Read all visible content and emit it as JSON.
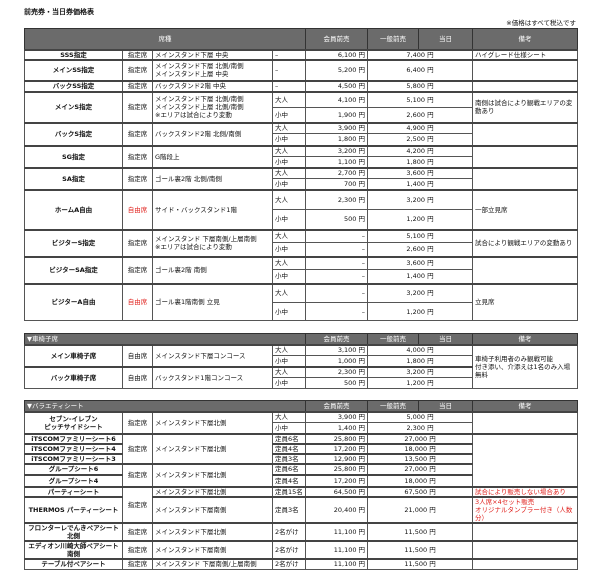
{
  "page": {
    "title": "前売券・当日券価格表",
    "tax_note": "※価格はすべて税込です"
  },
  "colors": {
    "header_bg": "#6b6b6b",
    "accent_red": "#e0201c"
  },
  "headers": {
    "seat": "席種",
    "member": "会員前売",
    "general": "一般前売",
    "today": "当日",
    "note": "備考"
  },
  "tables": [
    {
      "section_title": "",
      "groups": [
        {
          "name": "SSS指定",
          "type": "指定席",
          "location": "メインスタンド下層 中央",
          "rows": [
            {
              "age": "–",
              "member": "6,100 円",
              "general": "7,400 円"
            }
          ],
          "note": "ハイグレード仕様シート"
        },
        {
          "name": "メインSS指定",
          "type": "指定席",
          "location": "メインスタンド下層 北側/南側\nメインスタンド上層 中央",
          "rows": [
            {
              "age": "–",
              "member": "5,200 円",
              "general": "6,400 円"
            }
          ],
          "note": ""
        },
        {
          "name": "バックSS指定",
          "type": "指定席",
          "location": "バックスタンド2階 中央",
          "rows": [
            {
              "age": "–",
              "member": "4,500 円",
              "general": "5,800 円"
            }
          ],
          "note": ""
        },
        {
          "name": "メインS指定",
          "type": "指定席",
          "location": "メインスタンド下層 北側/南側\nメインスタンド上層 北側/南側\n※エリアは試合により変動",
          "rows": [
            {
              "age": "大人",
              "member": "4,100 円",
              "general": "5,100 円"
            },
            {
              "age": "小中",
              "member": "1,900 円",
              "general": "2,600 円"
            }
          ],
          "note": "南側は試合により観戦エリアの変動あり"
        },
        {
          "name": "バックS指定",
          "type": "指定席",
          "location": "バックスタンド2階 北側/南側",
          "rows": [
            {
              "age": "大人",
              "member": "3,900 円",
              "general": "4,900 円"
            },
            {
              "age": "小中",
              "member": "1,800 円",
              "general": "2,500 円"
            }
          ],
          "note": ""
        },
        {
          "name": "SG指定",
          "type": "指定席",
          "location": "G階段上",
          "rows": [
            {
              "age": "大人",
              "member": "3,200 円",
              "general": "4,200 円"
            },
            {
              "age": "小中",
              "member": "1,100 円",
              "general": "1,800 円"
            }
          ],
          "note": ""
        },
        {
          "name": "SA指定",
          "type": "指定席",
          "location": "ゴール裏2階 北側/南側",
          "rows": [
            {
              "age": "大人",
              "member": "2,700 円",
              "general": "3,600 円"
            },
            {
              "age": "小中",
              "member": "700 円",
              "general": "1,400 円"
            }
          ],
          "note": ""
        },
        {
          "name": "ホームA自由",
          "type": "自由席",
          "type_red": true,
          "location": "サイド・バックスタンド1階",
          "rows": [
            {
              "age": "大人",
              "member": "2,300 円",
              "general": "3,200 円"
            },
            {
              "age": "小中",
              "member": "500 円",
              "general": "1,200 円"
            }
          ],
          "note": "一部立見席"
        },
        {
          "name": "ビジターS指定",
          "type": "指定席",
          "location": "メインスタンド 下層南側/上層南側\n※エリアは試合により変動",
          "rows": [
            {
              "age": "大人",
              "member": "–",
              "general": "5,100 円"
            },
            {
              "age": "小中",
              "member": "–",
              "general": "2,600 円"
            }
          ],
          "note": "試合により観戦エリアの変動あり"
        },
        {
          "name": "ビジターSA指定",
          "type": "指定席",
          "location": "ゴール裏2階 南側",
          "rows": [
            {
              "age": "大人",
              "member": "–",
              "general": "3,600 円"
            },
            {
              "age": "小中",
              "member": "–",
              "general": "1,400 円"
            }
          ],
          "note": ""
        },
        {
          "name": "ビジターA自由",
          "type": "自由席",
          "type_red": true,
          "location": "ゴール裏1階南側 立見",
          "rows": [
            {
              "age": "大人",
              "member": "–",
              "general": "3,200 円"
            },
            {
              "age": "小中",
              "member": "–",
              "general": "1,200 円"
            }
          ],
          "note": "立見席"
        }
      ]
    },
    {
      "section_title": "▼車椅子席",
      "groups": [
        {
          "name": "メイン車椅子席",
          "type": "自由席",
          "location": "メインスタンド下層コンコース",
          "rows": [
            {
              "age": "大人",
              "member": "3,100 円",
              "general": "4,000 円"
            },
            {
              "age": "小中",
              "member": "1,000 円",
              "general": "1,800 円"
            }
          ],
          "note": "車椅子利用者のみ観戦可能\n付き添い、介添えは1名のみ入場無料"
        },
        {
          "name": "バック車椅子席",
          "type": "自由席",
          "location": "バックスタンド1階コンコース",
          "rows": [
            {
              "age": "大人",
              "member": "2,300 円",
              "general": "3,200 円"
            },
            {
              "age": "小中",
              "member": "500 円",
              "general": "1,200 円"
            }
          ]
        }
      ]
    },
    {
      "section_title": "▼バラエティシート",
      "groups": [
        {
          "name": "セブン-イレブン\nピッチサイドシート",
          "type": "指定席",
          "location": "メインスタンド下層北側",
          "rows": [
            {
              "age": "大人",
              "member": "3,900 円",
              "general": "5,000 円"
            },
            {
              "age": "小中",
              "member": "1,400 円",
              "general": "2,300 円"
            }
          ],
          "note": ""
        },
        {
          "name": "iTSCOMファミリーシート6",
          "type": "指定席",
          "location": "メインスタンド下層北側",
          "rows": [
            {
              "age": "定員6名",
              "member": "25,800 円",
              "general": "27,000 円"
            }
          ],
          "note": ""
        },
        {
          "name": "iTSCOMファミリーシート4",
          "rows": [
            {
              "age": "定員4名",
              "member": "17,200 円",
              "general": "18,000 円"
            }
          ]
        },
        {
          "name": "iTSCOMファミリーシート3",
          "rows": [
            {
              "age": "定員3名",
              "member": "12,900 円",
              "general": "13,500 円"
            }
          ]
        },
        {
          "name": "グループシート6",
          "type": "指定席",
          "location": "メインスタンド下層北側",
          "rows": [
            {
              "age": "定員6名",
              "member": "25,800 円",
              "general": "27,000 円"
            }
          ]
        },
        {
          "name": "グループシート4",
          "rows": [
            {
              "age": "定員4名",
              "member": "17,200 円",
              "general": "18,000 円"
            }
          ]
        },
        {
          "name": "パーティーシート",
          "type": "指定席",
          "location": "メインスタンド下層北側",
          "rows": [
            {
              "age": "定員15名",
              "member": "64,500 円",
              "general": "67,500 円"
            }
          ],
          "note": "試合により販売しない場合あり",
          "note_red": true
        },
        {
          "name": "THERMOS パーティーシート",
          "location": "メインスタンド下層南側",
          "rows": [
            {
              "age": "定員3名",
              "member": "20,400 円",
              "general": "21,000 円"
            }
          ],
          "note": "3人席×4セット販売\nオリジナルタンブラー付き（人数分）",
          "note_red": true
        },
        {
          "name": "フロンターレでんきペアシート北側",
          "type": "指定席",
          "location": "メインスタンド下層北側",
          "rows": [
            {
              "age": "2名がけ",
              "member": "11,100 円",
              "general": "11,500 円"
            }
          ],
          "note": ""
        },
        {
          "name": "エディオン川崎大師ペアシート南側",
          "type": "指定席",
          "location": "メインスタンド下層南側",
          "rows": [
            {
              "age": "2名がけ",
              "member": "11,100 円",
              "general": "11,500 円"
            }
          ],
          "note": ""
        },
        {
          "name": "テーブル付ペアシート",
          "type": "指定席",
          "location": "メインスタンド 下層南側/上層南側",
          "rows": [
            {
              "age": "2名がけ",
              "member": "11,100 円",
              "general": "11,500 円"
            }
          ],
          "note": ""
        }
      ]
    }
  ]
}
